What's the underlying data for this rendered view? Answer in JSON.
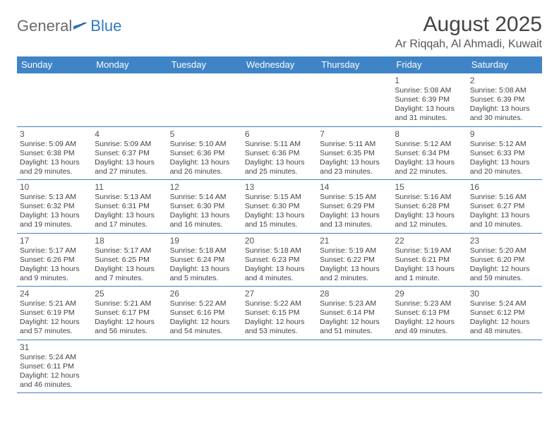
{
  "logo": {
    "general": "General",
    "blue": "Blue"
  },
  "title": "August 2025",
  "location": "Ar Riqqah, Al Ahmadi, Kuwait",
  "colors": {
    "header_bg": "#3f84c6",
    "header_fg": "#ffffff",
    "border": "#3f84c6",
    "text": "#444444",
    "logo_gray": "#6b6b6b",
    "logo_blue": "#2f79c0",
    "background": "#ffffff"
  },
  "day_headers": [
    "Sunday",
    "Monday",
    "Tuesday",
    "Wednesday",
    "Thursday",
    "Friday",
    "Saturday"
  ],
  "weeks": [
    [
      null,
      null,
      null,
      null,
      null,
      {
        "n": "1",
        "sunrise": "5:08 AM",
        "sunset": "6:39 PM",
        "daylight": "13 hours and 31 minutes."
      },
      {
        "n": "2",
        "sunrise": "5:08 AM",
        "sunset": "6:39 PM",
        "daylight": "13 hours and 30 minutes."
      }
    ],
    [
      {
        "n": "3",
        "sunrise": "5:09 AM",
        "sunset": "6:38 PM",
        "daylight": "13 hours and 29 minutes."
      },
      {
        "n": "4",
        "sunrise": "5:09 AM",
        "sunset": "6:37 PM",
        "daylight": "13 hours and 27 minutes."
      },
      {
        "n": "5",
        "sunrise": "5:10 AM",
        "sunset": "6:36 PM",
        "daylight": "13 hours and 26 minutes."
      },
      {
        "n": "6",
        "sunrise": "5:11 AM",
        "sunset": "6:36 PM",
        "daylight": "13 hours and 25 minutes."
      },
      {
        "n": "7",
        "sunrise": "5:11 AM",
        "sunset": "6:35 PM",
        "daylight": "13 hours and 23 minutes."
      },
      {
        "n": "8",
        "sunrise": "5:12 AM",
        "sunset": "6:34 PM",
        "daylight": "13 hours and 22 minutes."
      },
      {
        "n": "9",
        "sunrise": "5:12 AM",
        "sunset": "6:33 PM",
        "daylight": "13 hours and 20 minutes."
      }
    ],
    [
      {
        "n": "10",
        "sunrise": "5:13 AM",
        "sunset": "6:32 PM",
        "daylight": "13 hours and 19 minutes."
      },
      {
        "n": "11",
        "sunrise": "5:13 AM",
        "sunset": "6:31 PM",
        "daylight": "13 hours and 17 minutes."
      },
      {
        "n": "12",
        "sunrise": "5:14 AM",
        "sunset": "6:30 PM",
        "daylight": "13 hours and 16 minutes."
      },
      {
        "n": "13",
        "sunrise": "5:15 AM",
        "sunset": "6:30 PM",
        "daylight": "13 hours and 15 minutes."
      },
      {
        "n": "14",
        "sunrise": "5:15 AM",
        "sunset": "6:29 PM",
        "daylight": "13 hours and 13 minutes."
      },
      {
        "n": "15",
        "sunrise": "5:16 AM",
        "sunset": "6:28 PM",
        "daylight": "13 hours and 12 minutes."
      },
      {
        "n": "16",
        "sunrise": "5:16 AM",
        "sunset": "6:27 PM",
        "daylight": "13 hours and 10 minutes."
      }
    ],
    [
      {
        "n": "17",
        "sunrise": "5:17 AM",
        "sunset": "6:26 PM",
        "daylight": "13 hours and 9 minutes."
      },
      {
        "n": "18",
        "sunrise": "5:17 AM",
        "sunset": "6:25 PM",
        "daylight": "13 hours and 7 minutes."
      },
      {
        "n": "19",
        "sunrise": "5:18 AM",
        "sunset": "6:24 PM",
        "daylight": "13 hours and 5 minutes."
      },
      {
        "n": "20",
        "sunrise": "5:18 AM",
        "sunset": "6:23 PM",
        "daylight": "13 hours and 4 minutes."
      },
      {
        "n": "21",
        "sunrise": "5:19 AM",
        "sunset": "6:22 PM",
        "daylight": "13 hours and 2 minutes."
      },
      {
        "n": "22",
        "sunrise": "5:19 AM",
        "sunset": "6:21 PM",
        "daylight": "13 hours and 1 minute."
      },
      {
        "n": "23",
        "sunrise": "5:20 AM",
        "sunset": "6:20 PM",
        "daylight": "12 hours and 59 minutes."
      }
    ],
    [
      {
        "n": "24",
        "sunrise": "5:21 AM",
        "sunset": "6:19 PM",
        "daylight": "12 hours and 57 minutes."
      },
      {
        "n": "25",
        "sunrise": "5:21 AM",
        "sunset": "6:17 PM",
        "daylight": "12 hours and 56 minutes."
      },
      {
        "n": "26",
        "sunrise": "5:22 AM",
        "sunset": "6:16 PM",
        "daylight": "12 hours and 54 minutes."
      },
      {
        "n": "27",
        "sunrise": "5:22 AM",
        "sunset": "6:15 PM",
        "daylight": "12 hours and 53 minutes."
      },
      {
        "n": "28",
        "sunrise": "5:23 AM",
        "sunset": "6:14 PM",
        "daylight": "12 hours and 51 minutes."
      },
      {
        "n": "29",
        "sunrise": "5:23 AM",
        "sunset": "6:13 PM",
        "daylight": "12 hours and 49 minutes."
      },
      {
        "n": "30",
        "sunrise": "5:24 AM",
        "sunset": "6:12 PM",
        "daylight": "12 hours and 48 minutes."
      }
    ],
    [
      {
        "n": "31",
        "sunrise": "5:24 AM",
        "sunset": "6:11 PM",
        "daylight": "12 hours and 46 minutes."
      },
      null,
      null,
      null,
      null,
      null,
      null
    ]
  ],
  "labels": {
    "sunrise_prefix": "Sunrise: ",
    "sunset_prefix": "Sunset: ",
    "daylight_prefix": "Daylight: "
  }
}
